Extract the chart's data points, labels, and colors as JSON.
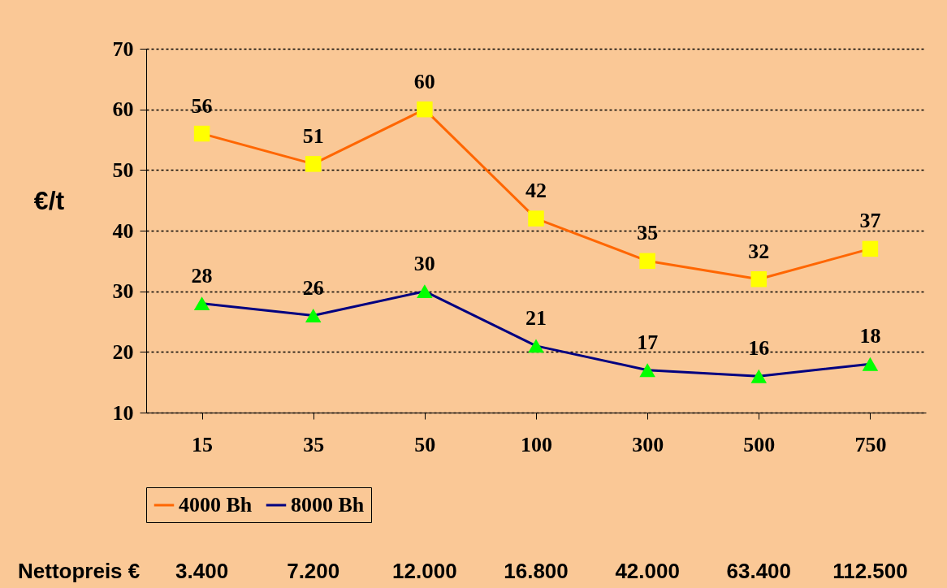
{
  "chart_data": {
    "type": "line",
    "ylabel": "€/t",
    "categories": [
      "15",
      "35",
      "50",
      "100",
      "300",
      "500",
      "750"
    ],
    "series": [
      {
        "name": "4000 Bh",
        "color": "#ff6600",
        "marker": "square",
        "values": [
          56,
          51,
          60,
          42,
          35,
          32,
          37
        ]
      },
      {
        "name": "8000 Bh",
        "color": "#000080",
        "marker": "triangle",
        "values": [
          28,
          26,
          30,
          21,
          17,
          16,
          18
        ]
      }
    ],
    "ylim": [
      10,
      70
    ],
    "yticks": [
      10,
      20,
      30,
      40,
      50,
      60,
      70
    ],
    "grid": "y",
    "legend": "bottom",
    "data_labels": true,
    "annotations": [
      "Nettopreis €",
      "3.400",
      "7.200",
      "12.000",
      "16.800",
      "42.000",
      "63.400",
      "112.500"
    ]
  }
}
